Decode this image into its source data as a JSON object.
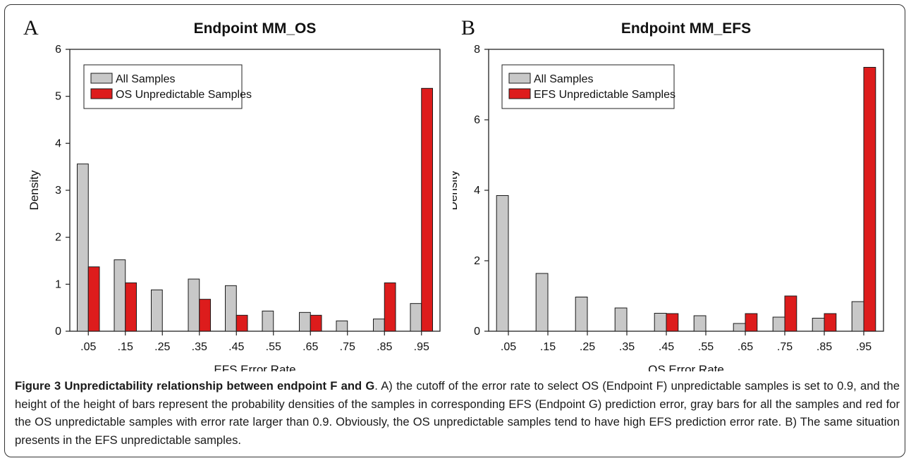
{
  "caption": {
    "title": "Figure 3 Unpredictability relationship between endpoint F and G",
    "text": ". A) the cutoff of the error rate to select OS (Endpoint F) unpredictable samples is set to 0.9, and the height of the height of bars represent the probability densities of the samples in corresponding EFS (Endpoint G) prediction error, gray bars for all the samples and red for the OS unpredictable samples with error rate larger than 0.9. Obviously, the OS unpredictable samples tend to have high EFS prediction error rate. B) The same situation presents in the EFS unpredictable samples."
  },
  "colors": {
    "all_samples": "#c8c8c8",
    "unpredictable": "#dd1c1c",
    "axis": "#222222"
  },
  "chart_data": [
    {
      "panel": "A",
      "type": "bar",
      "title": "Endpoint MM_OS",
      "xlabel": "EFS Error Rate",
      "ylabel": "Density",
      "ylim": [
        0,
        6
      ],
      "yticks": [
        0,
        1,
        2,
        3,
        4,
        5,
        6
      ],
      "categories": [
        ".05",
        ".15",
        ".25",
        ".35",
        ".45",
        ".55",
        ".65",
        ".75",
        ".85",
        ".95"
      ],
      "legend_position": "top-left",
      "series": [
        {
          "name": "All Samples",
          "color": "#c8c8c8",
          "values": [
            3.56,
            1.52,
            0.88,
            1.11,
            0.97,
            0.43,
            0.4,
            0.22,
            0.26,
            0.59
          ]
        },
        {
          "name": "OS Unpredictable Samples",
          "color": "#dd1c1c",
          "values": [
            1.37,
            1.03,
            0,
            0.68,
            0.34,
            0,
            0.34,
            0,
            1.03,
            5.17
          ]
        }
      ]
    },
    {
      "panel": "B",
      "type": "bar",
      "title": "Endpoint MM_EFS",
      "xlabel": "OS Error Rate",
      "ylabel": "Density",
      "ylim": [
        0,
        8
      ],
      "yticks": [
        0,
        2,
        4,
        6,
        8
      ],
      "categories": [
        ".05",
        ".15",
        ".25",
        ".35",
        ".45",
        ".55",
        ".65",
        ".75",
        ".85",
        ".95"
      ],
      "legend_position": "top-left",
      "series": [
        {
          "name": "All Samples",
          "color": "#c8c8c8",
          "values": [
            3.85,
            1.64,
            0.97,
            0.66,
            0.51,
            0.44,
            0.22,
            0.4,
            0.37,
            0.84
          ]
        },
        {
          "name": "EFS Unpredictable Samples",
          "color": "#dd1c1c",
          "values": [
            0,
            0,
            0,
            0,
            0.5,
            0,
            0.5,
            1.0,
            0.5,
            7.49
          ]
        }
      ]
    }
  ]
}
